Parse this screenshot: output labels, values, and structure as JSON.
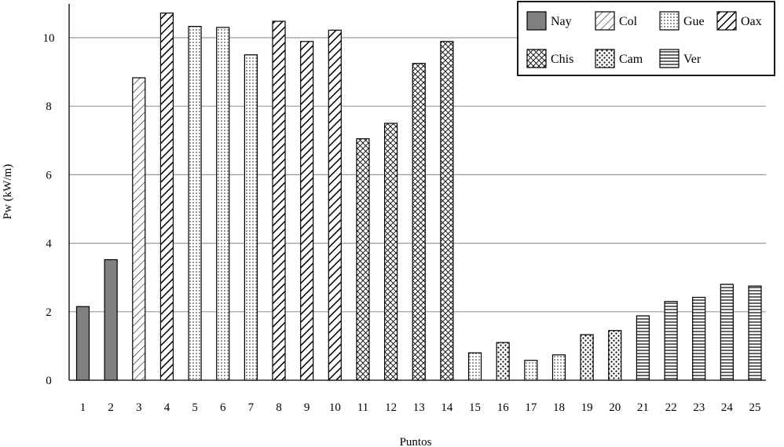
{
  "chart_data": {
    "type": "bar",
    "title": "",
    "xlabel": "Puntos",
    "ylabel": "Pw (kW/m)",
    "categories": [
      "1",
      "2",
      "3",
      "4",
      "5",
      "6",
      "7",
      "8",
      "9",
      "10",
      "11",
      "12",
      "13",
      "14",
      "15",
      "16",
      "17",
      "18",
      "19",
      "20",
      "21",
      "22",
      "23",
      "24",
      "25"
    ],
    "values": [
      2.15,
      3.52,
      8.83,
      10.72,
      10.33,
      10.3,
      9.5,
      10.48,
      9.89,
      10.22,
      7.05,
      7.5,
      9.25,
      9.89,
      0.8,
      1.1,
      0.58,
      0.74,
      1.33,
      1.45,
      1.88,
      2.3,
      2.42,
      2.8,
      2.75
    ],
    "groups": [
      "Nay",
      "Nay",
      "Col",
      "Oax",
      "Gue",
      "Gue",
      "Gue",
      "Oax",
      "Oax",
      "Oax",
      "Chis",
      "Chis",
      "Chis",
      "Chis",
      "Gue",
      "Cam",
      "Gue",
      "Gue",
      "Cam",
      "Cam",
      "Ver",
      "Ver",
      "Ver",
      "Ver",
      "Ver"
    ],
    "ylim": [
      0,
      11
    ],
    "yticks": [
      0,
      2,
      4,
      6,
      8,
      10
    ],
    "grid": true,
    "legend_position": "top-right",
    "legend": [
      {
        "name": "Nay",
        "pattern": "solid-gray"
      },
      {
        "name": "Col",
        "pattern": "thin-diagonal"
      },
      {
        "name": "Gue",
        "pattern": "dots"
      },
      {
        "name": "Oax",
        "pattern": "thick-diagonal"
      },
      {
        "name": "Chis",
        "pattern": "crosshatch"
      },
      {
        "name": "Cam",
        "pattern": "large-dots"
      },
      {
        "name": "Ver",
        "pattern": "horizontal-lines"
      }
    ],
    "colors": {
      "solid": "#808080",
      "stroke": "#000000",
      "grid": "#9a9a9a"
    }
  }
}
